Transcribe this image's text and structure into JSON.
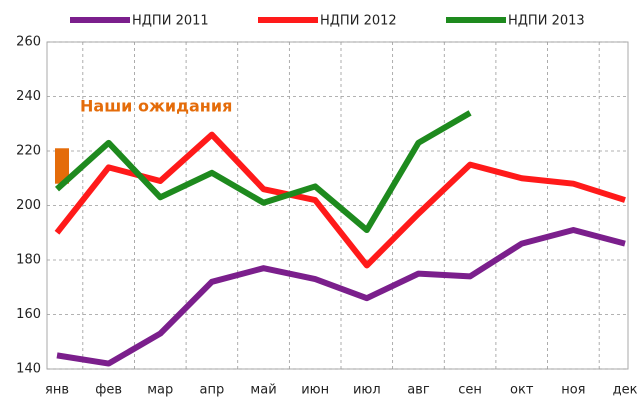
{
  "chart_data": {
    "type": "line",
    "categories": [
      "янв",
      "фев",
      "мар",
      "апр",
      "май",
      "июн",
      "июл",
      "авг",
      "сен",
      "окт",
      "ноя",
      "дек"
    ],
    "series": [
      {
        "name": "НДПИ 2011",
        "color": "#7b1f8c",
        "values": [
          145,
          142,
          153,
          172,
          177,
          173,
          166,
          175,
          174,
          186,
          191,
          186
        ]
      },
      {
        "name": "НДПИ 2012",
        "color": "#ff1a1a",
        "values": [
          190,
          214,
          209,
          226,
          206,
          202,
          178,
          197,
          215,
          210,
          208,
          202
        ]
      },
      {
        "name": "НДПИ 2013",
        "color": "#1e8a1e",
        "values": [
          206,
          223,
          203,
          212,
          201,
          207,
          191,
          223,
          234,
          null,
          null,
          null
        ]
      }
    ],
    "expectation": {
      "label": "Наши ожидания",
      "range": [
        208,
        221
      ],
      "color": "#e46c0a"
    },
    "ylim": [
      140,
      260
    ],
    "yticks": [
      140,
      160,
      180,
      200,
      220,
      240,
      260
    ],
    "grid": true
  }
}
